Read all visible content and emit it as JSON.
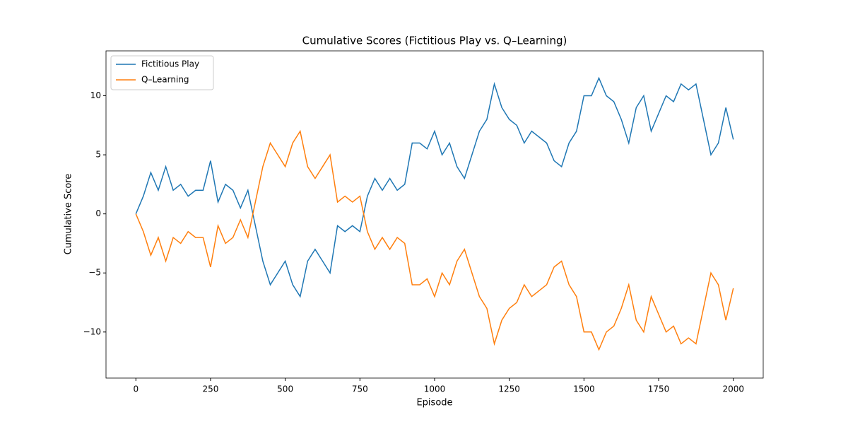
{
  "chart_data": {
    "type": "line",
    "title": "Cumulative Scores (Fictitious Play vs. Q–Learning)",
    "x_label": "Episode",
    "y_label": "Cumulative Score",
    "x": [
      0,
      25,
      50,
      75,
      100,
      125,
      150,
      175,
      200,
      225,
      250,
      275,
      300,
      325,
      350,
      375,
      400,
      425,
      450,
      475,
      500,
      525,
      550,
      575,
      600,
      625,
      650,
      675,
      700,
      725,
      750,
      775,
      800,
      825,
      850,
      875,
      900,
      925,
      950,
      975,
      1000,
      1025,
      1050,
      1075,
      1100,
      1125,
      1150,
      1175,
      1200,
      1225,
      1250,
      1275,
      1300,
      1325,
      1350,
      1375,
      1400,
      1425,
      1450,
      1475,
      1500,
      1525,
      1550,
      1575,
      1600,
      1625,
      1650,
      1675,
      1700,
      1725,
      1750,
      1775,
      1800,
      1825,
      1850,
      1875,
      1900,
      1925,
      1950,
      1975,
      2000
    ],
    "series": [
      {
        "name": "Fictitious Play",
        "color": "#1f77b4",
        "values": [
          0,
          1.5,
          3.5,
          2,
          4,
          2,
          2.5,
          1.5,
          2,
          2,
          4.5,
          1,
          2.5,
          2,
          0.5,
          2,
          -1,
          -4,
          -6,
          -5,
          -4,
          -6,
          -7,
          -4,
          -3,
          -4,
          -5,
          -1,
          -1.5,
          -1,
          -1.5,
          1.5,
          3,
          2,
          3,
          2,
          2.5,
          6,
          6,
          5.5,
          7,
          5,
          6,
          4,
          3,
          5,
          7,
          8,
          11,
          9,
          8,
          7.5,
          6,
          7,
          6.5,
          6,
          4.5,
          4,
          6,
          7,
          10,
          10,
          11.5,
          10,
          9.5,
          8,
          6,
          9,
          10,
          7,
          8.5,
          10,
          9.5,
          11,
          10.5,
          11,
          8,
          5,
          6,
          9,
          6.3
        ]
      },
      {
        "name": "Q–Learning",
        "color": "#ff7f0e",
        "values": [
          0,
          -1.5,
          -3.5,
          -2,
          -4,
          -2,
          -2.5,
          -1.5,
          -2,
          -2,
          -4.5,
          -1,
          -2.5,
          -2,
          -0.5,
          -2,
          1,
          4,
          6,
          5,
          4,
          6,
          7,
          4,
          3,
          4,
          5,
          1,
          1.5,
          1,
          1.5,
          -1.5,
          -3,
          -2,
          -3,
          -2,
          -2.5,
          -6,
          -6,
          -5.5,
          -7,
          -5,
          -6,
          -4,
          -3,
          -5,
          -7,
          -8,
          -11,
          -9,
          -8,
          -7.5,
          -6,
          -7,
          -6.5,
          -6,
          -4.5,
          -4,
          -6,
          -7,
          -10,
          -10,
          -11.5,
          -10,
          -9.5,
          -8,
          -6,
          -9,
          -10,
          -7,
          -8.5,
          -10,
          -9.5,
          -11,
          -10.5,
          -11,
          -8,
          -5,
          -6,
          -9,
          -6.3
        ]
      }
    ],
    "xlim": [
      -100,
      2100
    ],
    "ylim": [
      -13.9,
      13.8
    ],
    "xticks": [
      0,
      250,
      500,
      750,
      1000,
      1250,
      1500,
      1750,
      2000
    ],
    "yticks": [
      {
        "value": -10,
        "label": "−10"
      },
      {
        "value": -5,
        "label": "−5"
      },
      0,
      5,
      10
    ],
    "legend": "upper left"
  }
}
